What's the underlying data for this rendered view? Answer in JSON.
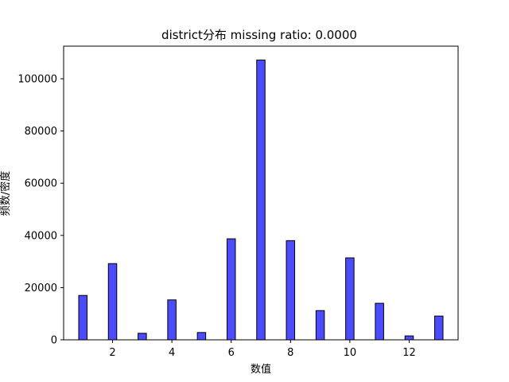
{
  "chart_data": {
    "type": "bar",
    "title": "district分布  missing ratio: 0.0000",
    "xlabel": "数值",
    "ylabel": "频数/密度",
    "x": [
      1,
      2,
      3,
      4,
      5,
      6,
      7,
      8,
      9,
      10,
      11,
      12,
      13
    ],
    "values": [
      17000,
      29200,
      2500,
      15300,
      2800,
      38700,
      107200,
      38000,
      11200,
      31400,
      14000,
      1500,
      9100
    ],
    "xlim": [
      0.35,
      13.65
    ],
    "ylim": [
      0,
      112500
    ],
    "xticks": [
      2,
      4,
      6,
      8,
      10,
      12
    ],
    "yticks": [
      0,
      20000,
      40000,
      60000,
      80000,
      100000
    ],
    "grid": false,
    "bar_color": "#0000ff",
    "bar_opacity": 0.7,
    "edge_color": "#000000"
  }
}
